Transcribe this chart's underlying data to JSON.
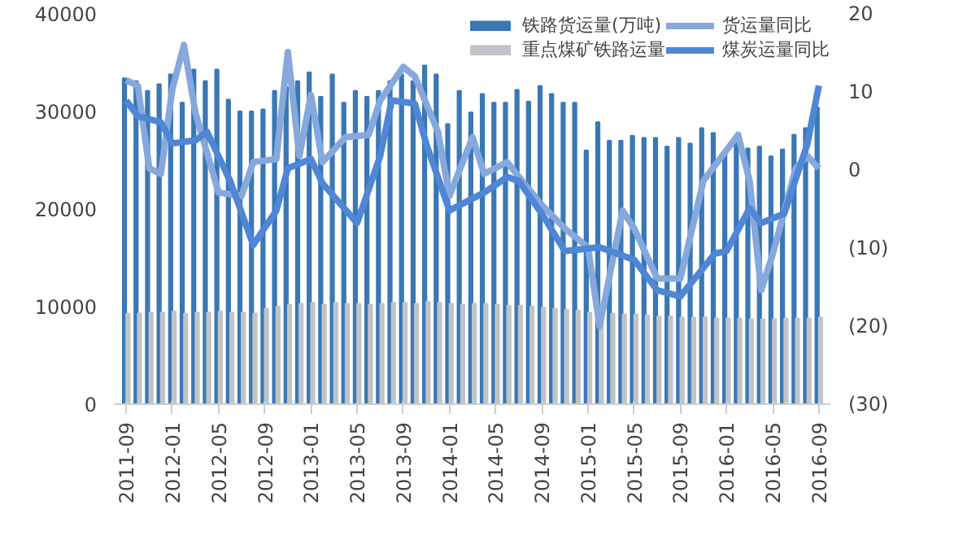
{
  "chart_data": {
    "type": "bar",
    "x": [
      "2011-09",
      "2011-10",
      "2011-11",
      "2011-12",
      "2012-01",
      "2012-02",
      "2012-03",
      "2012-04",
      "2012-05",
      "2012-06",
      "2012-07",
      "2012-08",
      "2012-09",
      "2012-10",
      "2012-11",
      "2012-12",
      "2013-01",
      "2013-02",
      "2013-03",
      "2013-04",
      "2013-05",
      "2013-06",
      "2013-07",
      "2013-08",
      "2013-09",
      "2013-10",
      "2013-11",
      "2013-12",
      "2014-01",
      "2014-02",
      "2014-03",
      "2014-04",
      "2014-05",
      "2014-06",
      "2014-07",
      "2014-08",
      "2014-09",
      "2014-10",
      "2014-11",
      "2014-12",
      "2015-01",
      "2015-02",
      "2015-03",
      "2015-04",
      "2015-05",
      "2015-06",
      "2015-07",
      "2015-08",
      "2015-09",
      "2015-10",
      "2015-11",
      "2015-12",
      "2016-01",
      "2016-02",
      "2016-03",
      "2016-04",
      "2016-05",
      "2016-06",
      "2016-07",
      "2016-08",
      "2016-09"
    ],
    "series": [
      {
        "name": "铁路货运量(万吨)",
        "color": "#3a78b5",
        "values": [
          33400,
          33100,
          32100,
          32800,
          33800,
          30900,
          34300,
          33100,
          34300,
          31200,
          30000,
          30000,
          30200,
          32100,
          32500,
          33100,
          34000,
          31500,
          33800,
          30900,
          32100,
          31500,
          32100,
          33100,
          33800,
          33100,
          34700,
          33800,
          28700,
          32100,
          29900,
          31800,
          30900,
          30900,
          32200,
          31000,
          32600,
          31800,
          30900,
          30900,
          26000,
          28900,
          27000,
          27000,
          27500,
          27300,
          27300,
          26400,
          27300,
          26700,
          28300,
          27800,
          25700,
          27300,
          26200,
          26400,
          25400,
          26100,
          27600,
          28300,
          30400
        ]
      },
      {
        "name": "重点煤矿铁路运量",
        "color": "#c0c4c8",
        "values": [
          9300,
          9300,
          9400,
          9400,
          9500,
          9300,
          9400,
          9400,
          9500,
          9400,
          9400,
          9300,
          9800,
          10000,
          10200,
          10300,
          10400,
          10200,
          10400,
          10300,
          10300,
          10200,
          10300,
          10400,
          10400,
          10300,
          10500,
          10400,
          10300,
          10200,
          10300,
          10300,
          10200,
          10100,
          10100,
          10000,
          9900,
          9800,
          9700,
          9600,
          9400,
          9300,
          9300,
          9200,
          9200,
          9100,
          9000,
          9000,
          8900,
          8900,
          8900,
          8800,
          8800,
          8800,
          8700,
          8700,
          8700,
          8800,
          8800,
          8800,
          8900
        ]
      },
      {
        "name": "货运量同比",
        "type": "line",
        "axis": "y2",
        "color": "#86a8dc",
        "x": [
          "2011-09",
          "2011-10",
          "2011-11",
          "2011-12",
          "2012-01",
          "2012-02",
          "2012-03",
          "2012-05",
          "2012-07",
          "2012-08",
          "2012-10",
          "2012-11",
          "2012-12",
          "2013-01",
          "2013-02",
          "2013-04",
          "2013-06",
          "2013-07",
          "2013-09",
          "2013-10",
          "2013-12",
          "2014-01",
          "2014-03",
          "2014-04",
          "2014-06",
          "2014-09",
          "2014-11",
          "2015-01",
          "2015-02",
          "2015-04",
          "2015-05",
          "2015-07",
          "2015-09",
          "2015-11",
          "2016-02",
          "2016-03",
          "2016-04",
          "2016-05",
          "2016-07",
          "2016-08",
          "2016-09"
        ],
        "values": [
          11.5,
          10.8,
          0.2,
          -0.5,
          10.4,
          16,
          7.3,
          -2.9,
          -3.3,
          1,
          1.4,
          15.1,
          1.8,
          9.6,
          1,
          4.2,
          4.5,
          8.9,
          13.2,
          12,
          4.9,
          -3.3,
          4.2,
          -0.5,
          1,
          -4.5,
          -7.5,
          -9.9,
          -20,
          -5.2,
          -7.5,
          -13.9,
          -13.9,
          -1.4,
          4.5,
          -1.4,
          -15.4,
          -10.8,
          0.2,
          1.8,
          0.2
        ]
      },
      {
        "name": "煤炭运量同比",
        "type": "line",
        "axis": "y2",
        "color": "#4f86d6",
        "x": [
          "2011-09",
          "2011-10",
          "2011-12",
          "2012-01",
          "2012-03",
          "2012-04",
          "2012-06",
          "2012-08",
          "2012-10",
          "2012-11",
          "2013-01",
          "2013-02",
          "2013-05",
          "2013-07",
          "2013-08",
          "2013-10",
          "2013-11",
          "2014-01",
          "2014-04",
          "2014-06",
          "2014-07",
          "2014-09",
          "2014-11",
          "2015-02",
          "2015-05",
          "2015-07",
          "2015-09",
          "2015-12",
          "2016-01",
          "2016-03",
          "2016-04",
          "2016-06",
          "2016-08",
          "2016-09"
        ],
        "values": [
          8.9,
          6.9,
          6.1,
          3.4,
          3.8,
          4.9,
          -1.4,
          -9.6,
          -5.2,
          0.2,
          1.4,
          -1.7,
          -6.8,
          1.8,
          8.9,
          8.5,
          3.3,
          -5.2,
          -2.9,
          -0.9,
          -1.4,
          -5.6,
          -10.4,
          -9.9,
          -11.5,
          -15.4,
          -16.2,
          -10.7,
          -10.4,
          -4.9,
          -6.8,
          -5.6,
          3.3,
          10.8
        ]
      }
    ],
    "xlim": [
      "2011-08",
      "2016-10"
    ],
    "xticks": [
      "2011-09",
      "2012-01",
      "2012-05",
      "2012-09",
      "2013-01",
      "2013-05",
      "2013-09",
      "2014-01",
      "2014-05",
      "2014-09",
      "2015-01",
      "2015-05",
      "2015-09",
      "2016-01",
      "2016-05",
      "2016-09"
    ],
    "ylim": [
      0,
      40000
    ],
    "yticks": [
      0,
      10000,
      20000,
      30000,
      40000
    ],
    "y2lim": [
      -30,
      20
    ],
    "y2ticks": [
      {
        "value": -30,
        "label": "(30)"
      },
      {
        "value": -20,
        "label": "(20)"
      },
      {
        "value": -10,
        "label": "(10)"
      },
      0,
      10,
      20
    ],
    "grid": false,
    "legend": "top"
  }
}
